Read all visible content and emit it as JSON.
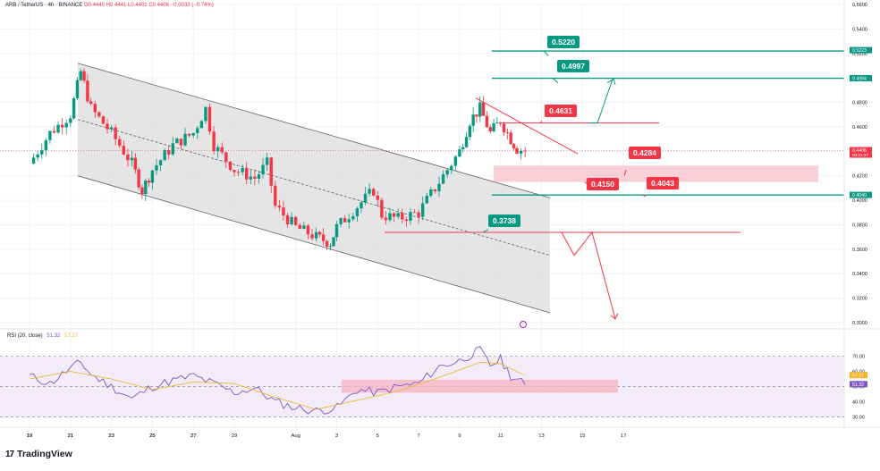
{
  "header": {
    "symbol": "ARB / TetherUS · 4h · BINANCE",
    "ohlc": "O0.4440  H0.4441  L0.4401  C0.4406  −0.0033 (−0.74%)"
  },
  "colors": {
    "up": "#089981",
    "down": "#f23645",
    "channel": "#9e9e9e",
    "resistance": "#089981",
    "rsi_line": "#7e57c2",
    "rsi_ma": "#f0b427",
    "rsi_band": "#ede7f6",
    "zone": "#f8c8cf"
  },
  "chart_data": [
    {
      "type": "candlestick",
      "symbol": "ARB / TetherUS",
      "interval": "4h",
      "exchange": "BINANCE",
      "last": {
        "open": 0.444,
        "high": 0.4441,
        "low": 0.4401,
        "close": 0.4406,
        "change": -0.0033,
        "change_pct": -0.74
      },
      "ylim": [
        0.3,
        0.56
      ],
      "y_ticks": [
        "0.5600",
        "0.5400",
        "0.5200",
        "0.5000",
        "0.4800",
        "0.4600",
        "0.4400",
        "0.4200",
        "0.4000",
        "0.3800",
        "0.3600",
        "0.3400",
        "0.3200",
        "0.3000"
      ],
      "x_ticks": [
        "19",
        "21",
        "23",
        "25",
        "27",
        "29",
        "Aug",
        "3",
        "5",
        "7",
        "9",
        "11",
        "13",
        "15",
        "17",
        "19",
        "21",
        "23",
        "25",
        "27"
      ],
      "close_path": [
        {
          "x": "19",
          "y": 0.43
        },
        {
          "x": "20",
          "y": 0.455
        },
        {
          "x": "21",
          "y": 0.47
        },
        {
          "x": "21.5",
          "y": 0.505
        },
        {
          "x": "22",
          "y": 0.475
        },
        {
          "x": "23",
          "y": 0.455
        },
        {
          "x": "24",
          "y": 0.43
        },
        {
          "x": "24.5",
          "y": 0.408
        },
        {
          "x": "25",
          "y": 0.425
        },
        {
          "x": "26",
          "y": 0.445
        },
        {
          "x": "27",
          "y": 0.455
        },
        {
          "x": "27.6",
          "y": 0.475
        },
        {
          "x": "28",
          "y": 0.445
        },
        {
          "x": "29",
          "y": 0.425
        },
        {
          "x": "30",
          "y": 0.418
        },
        {
          "x": "30.6",
          "y": 0.43
        },
        {
          "x": "31",
          "y": 0.395
        },
        {
          "x": "Aug",
          "y": 0.378
        },
        {
          "x": "2",
          "y": 0.37
        },
        {
          "x": "2.7",
          "y": 0.365
        },
        {
          "x": "3",
          "y": 0.378
        },
        {
          "x": "4",
          "y": 0.395
        },
        {
          "x": "4.8",
          "y": 0.408
        },
        {
          "x": "5.2",
          "y": 0.388
        },
        {
          "x": "6",
          "y": 0.385
        },
        {
          "x": "7",
          "y": 0.39
        },
        {
          "x": "8",
          "y": 0.415
        },
        {
          "x": "9",
          "y": 0.44
        },
        {
          "x": "9.5",
          "y": 0.465
        },
        {
          "x": "10",
          "y": 0.475
        },
        {
          "x": "10.5",
          "y": 0.455
        },
        {
          "x": "11",
          "y": 0.465
        },
        {
          "x": "11.5",
          "y": 0.45
        },
        {
          "x": "11.8",
          "y": 0.442
        },
        {
          "x": "12.2",
          "y": 0.4406
        }
      ],
      "levels": [
        {
          "label": "0.5220",
          "value": 0.522,
          "kind": "target"
        },
        {
          "label": "0.4997",
          "value": 0.4997,
          "kind": "target"
        },
        {
          "label": "0.4631",
          "value": 0.4631,
          "kind": "resistance"
        },
        {
          "label": "0.4284",
          "value": 0.4284,
          "kind": "zone-top"
        },
        {
          "label": "0.4150",
          "value": 0.415,
          "kind": "zone-bottom"
        },
        {
          "label": "0.4043",
          "value": 0.4043,
          "kind": "support"
        },
        {
          "label": "0.3738",
          "value": 0.3738,
          "kind": "support"
        }
      ],
      "axis_tags": [
        {
          "label": "0.5223",
          "value": 0.5223,
          "color": "#089981"
        },
        {
          "label": "0.4994",
          "value": 0.4994,
          "color": "#089981"
        },
        {
          "label": "0.4406",
          "sub": "03:21:37",
          "value": 0.4406,
          "color": "#f23645"
        },
        {
          "label": "0.4040",
          "value": 0.404,
          "color": "#089981"
        }
      ]
    },
    {
      "type": "line",
      "title": "RSI (20, close)",
      "series": [
        {
          "name": "RSI",
          "value_label": "51.32",
          "color": "#7e57c2",
          "values": [
            {
              "x": "19",
              "y": 57
            },
            {
              "x": "20",
              "y": 52
            },
            {
              "x": "21",
              "y": 62
            },
            {
              "x": "21.5",
              "y": 66
            },
            {
              "x": "22",
              "y": 58
            },
            {
              "x": "23",
              "y": 50
            },
            {
              "x": "24",
              "y": 42
            },
            {
              "x": "25",
              "y": 50
            },
            {
              "x": "26",
              "y": 54
            },
            {
              "x": "27",
              "y": 57
            },
            {
              "x": "28",
              "y": 52
            },
            {
              "x": "29",
              "y": 46
            },
            {
              "x": "30",
              "y": 49
            },
            {
              "x": "31",
              "y": 40
            },
            {
              "x": "Aug",
              "y": 36
            },
            {
              "x": "2",
              "y": 34
            },
            {
              "x": "3",
              "y": 36
            },
            {
              "x": "4",
              "y": 48
            },
            {
              "x": "5",
              "y": 46
            },
            {
              "x": "6",
              "y": 50
            },
            {
              "x": "7",
              "y": 52
            },
            {
              "x": "8",
              "y": 63
            },
            {
              "x": "9",
              "y": 67
            },
            {
              "x": "10",
              "y": 74
            },
            {
              "x": "10.5",
              "y": 64
            },
            {
              "x": "11",
              "y": 68
            },
            {
              "x": "11.5",
              "y": 57
            },
            {
              "x": "12.2",
              "y": 51.32
            }
          ]
        },
        {
          "name": "RSI MA",
          "value_label": "57.27",
          "color": "#f0b427",
          "values": [
            {
              "x": "19",
              "y": 55
            },
            {
              "x": "21",
              "y": 60
            },
            {
              "x": "23",
              "y": 55
            },
            {
              "x": "25",
              "y": 48
            },
            {
              "x": "27",
              "y": 53
            },
            {
              "x": "29",
              "y": 52
            },
            {
              "x": "31",
              "y": 43
            },
            {
              "x": "2",
              "y": 35
            },
            {
              "x": "4",
              "y": 41
            },
            {
              "x": "6",
              "y": 47
            },
            {
              "x": "8",
              "y": 56
            },
            {
              "x": "10",
              "y": 66
            },
            {
              "x": "11",
              "y": 65
            },
            {
              "x": "12.2",
              "y": 57.27
            }
          ]
        }
      ],
      "ylim": [
        28,
        75
      ],
      "y_ticks": [
        "70.00",
        "60.00",
        "50.00",
        "40.00",
        "30.00"
      ],
      "value_tags": [
        {
          "label": "57.27",
          "value": 57.27,
          "color": "#f0b427"
        },
        {
          "label": "51.32",
          "value": 51.32,
          "color": "#7e57c2"
        }
      ]
    }
  ],
  "brand": {
    "name": "TradingView",
    "mark": "17"
  }
}
